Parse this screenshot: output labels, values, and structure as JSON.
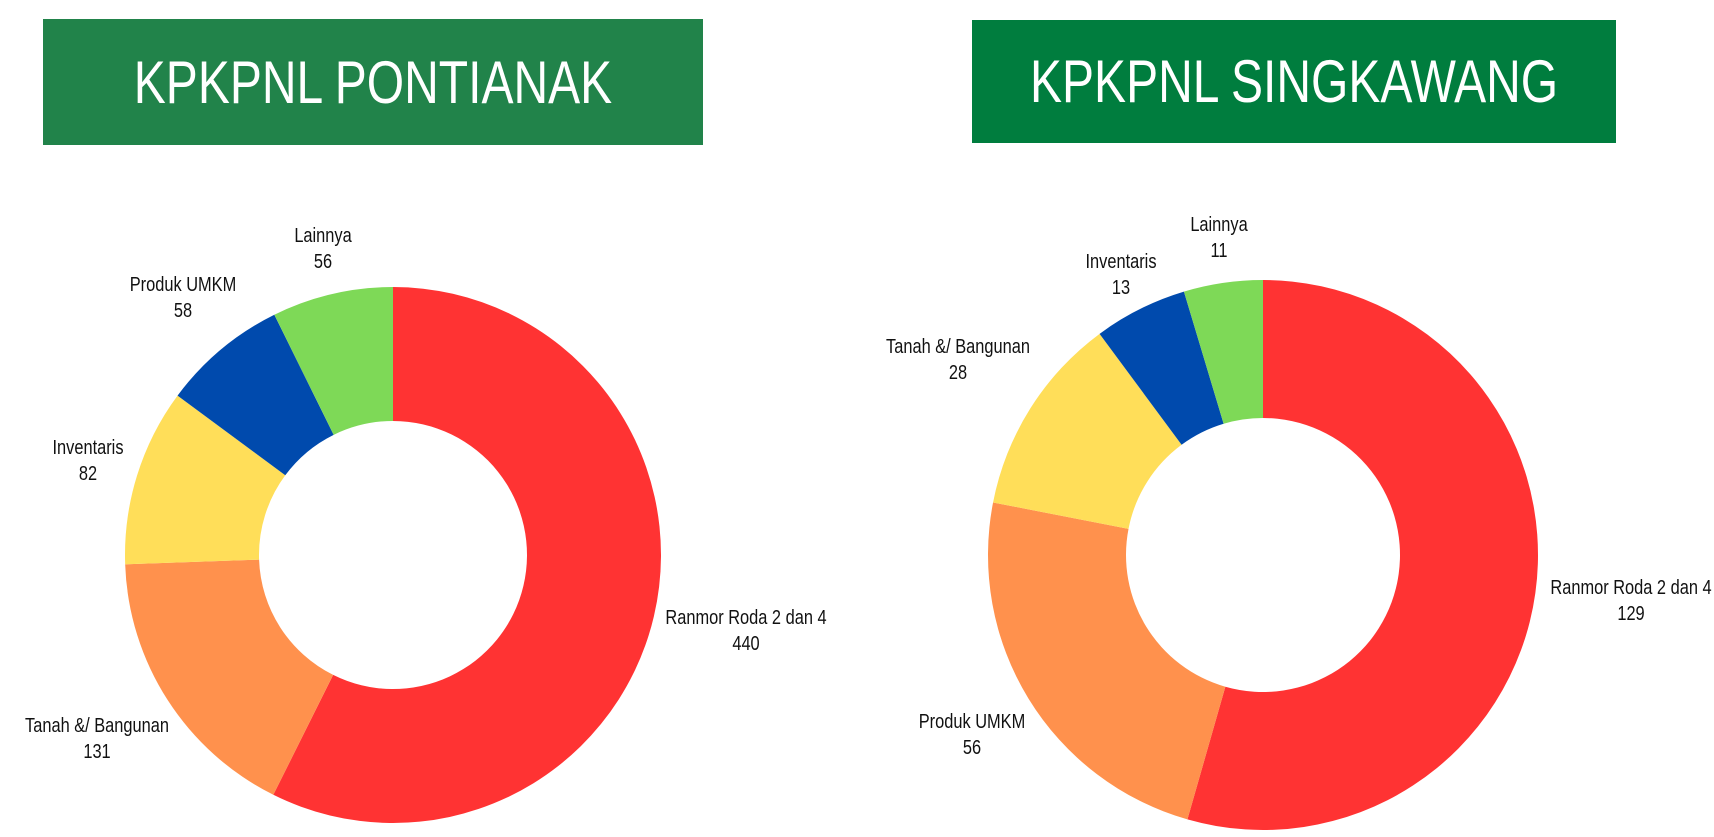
{
  "chart_data": [
    {
      "type": "donut",
      "title": "KPKPNL PONTIANAK",
      "banner_color": "#21834a",
      "categories": [
        "Ranmor Roda 2 dan 4",
        "Tanah &/ Bangunan",
        "Inventaris",
        "Produk UMKM",
        "Lainnya"
      ],
      "values": [
        440,
        131,
        82,
        58,
        56
      ],
      "colors": [
        "#ff3333",
        "#ff914d",
        "#ffde59",
        "#004aad",
        "#7ed957"
      ],
      "data_labels": [
        {
          "name": "Ranmor Roda 2 dan 4",
          "value": "440"
        },
        {
          "name": "Tanah &/ Bangunan",
          "value": "131"
        },
        {
          "name": "Inventaris",
          "value": "82"
        },
        {
          "name": "Produk UMKM",
          "value": "58"
        },
        {
          "name": "Lainnya",
          "value": "56"
        }
      ],
      "legend": "none"
    },
    {
      "type": "donut",
      "title": "KPKPNL SINGKAWANG",
      "banner_color": "#007d3e",
      "categories": [
        "Ranmor Roda 2 dan 4",
        "Produk UMKM",
        "Tanah &/ Bangunan",
        "Inventaris",
        "Lainnya"
      ],
      "values": [
        129,
        56,
        28,
        13,
        11
      ],
      "colors": [
        "#ff3333",
        "#ff914d",
        "#ffde59",
        "#004aad",
        "#7ed957"
      ],
      "data_labels": [
        {
          "name": "Ranmor Roda 2 dan 4",
          "value": "129"
        },
        {
          "name": "Produk UMKM",
          "value": "56"
        },
        {
          "name": "Tanah &/ Bangunan",
          "value": "28"
        },
        {
          "name": "Inventaris",
          "value": "13"
        },
        {
          "name": "Lainnya",
          "value": "11"
        }
      ],
      "legend": "none"
    }
  ]
}
